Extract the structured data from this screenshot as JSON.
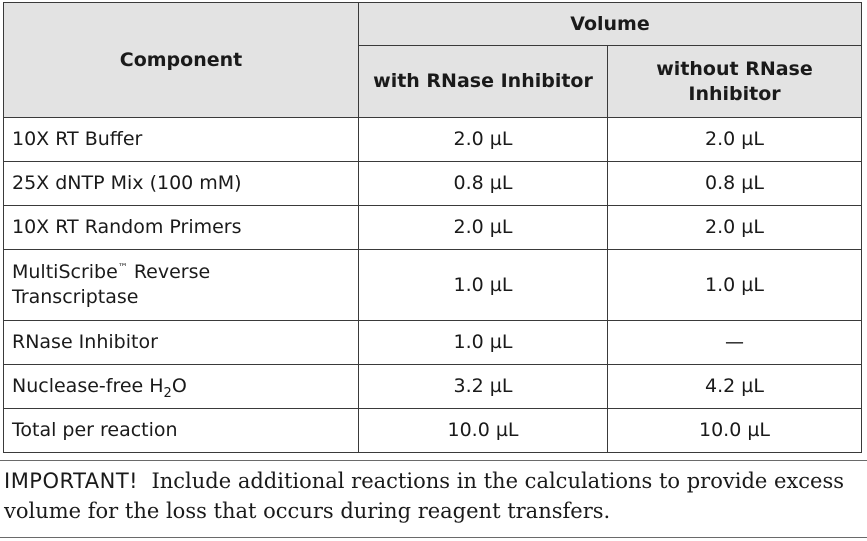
{
  "table": {
    "header": {
      "component": "Component",
      "volume": "Volume",
      "with_inhibitor": "with RNase Inhibitor",
      "without_inhibitor_line1": "without RNase",
      "without_inhibitor_line2": "Inhibitor"
    },
    "rows": [
      {
        "component": "10X RT Buffer",
        "with": "2.0 µL",
        "without": "2.0 µL"
      },
      {
        "component": "25X dNTP Mix (100 mM)",
        "with": "0.8 µL",
        "without": "0.8 µL"
      },
      {
        "component": "10X RT Random Primers",
        "with": "2.0 µL",
        "without": "2.0 µL"
      },
      {
        "component_line1": "MultiScribe",
        "component_tm": "™",
        "component_line1_rest": " Reverse",
        "component_line2": "Transcriptase",
        "with": "1.0 µL",
        "without": "1.0 µL"
      },
      {
        "component": "RNase Inhibitor",
        "with": "1.0 µL",
        "without": "—"
      },
      {
        "component_prefix": "Nuclease-free H",
        "component_sub": "2",
        "component_suffix": "O",
        "with": "3.2 µL",
        "without": "4.2 µL"
      },
      {
        "component": "Total per reaction",
        "with": "10.0 µL",
        "without": "10.0 µL"
      }
    ]
  },
  "note": {
    "lead": "IMPORTANT!",
    "text": "Include additional reactions in the calculations to provide excess volume for the loss that occurs during reagent transfers."
  }
}
